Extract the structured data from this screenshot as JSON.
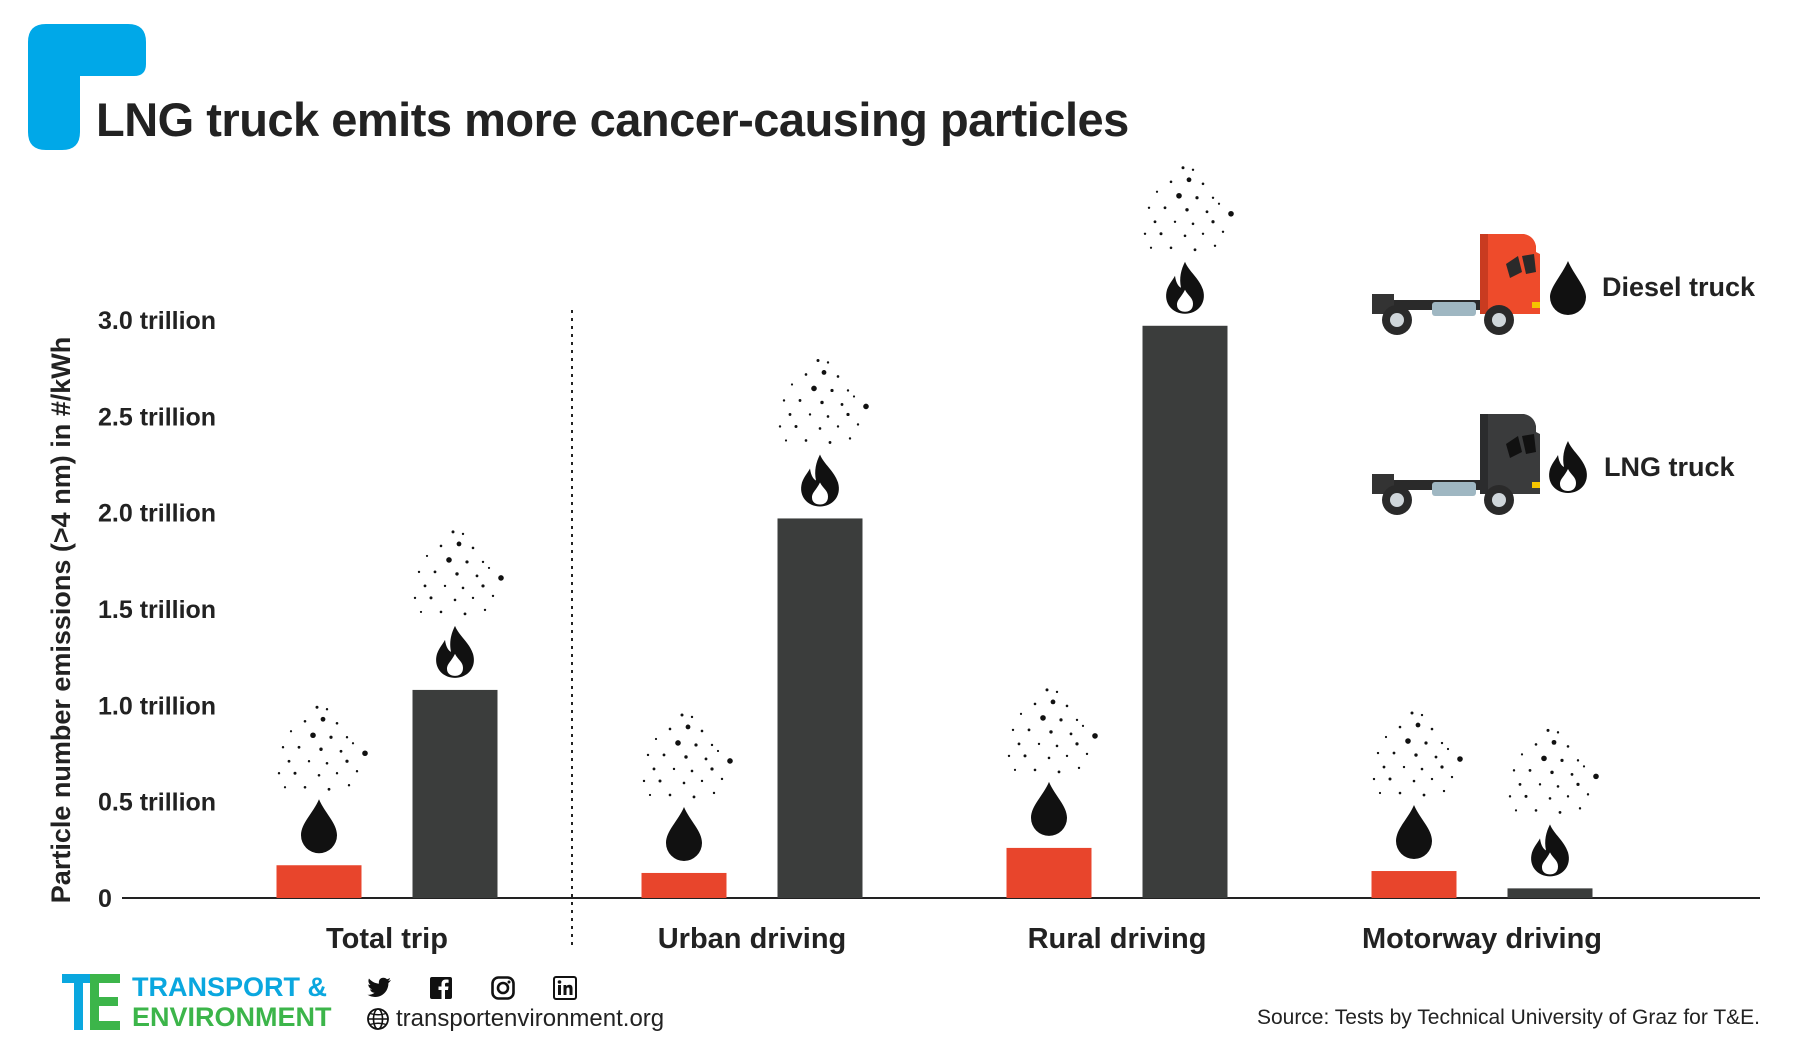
{
  "title": "LNG truck emits more cancer-causing particles",
  "colors": {
    "accent": "#00a8e8",
    "diesel": "#e8452c",
    "lng": "#3b3d3c",
    "axis": "#222222"
  },
  "legend": [
    {
      "label": "Diesel truck",
      "icon": "droplet-icon",
      "truck_color": "#ee4b2b"
    },
    {
      "label": "LNG truck",
      "icon": "flame-icon",
      "truck_color": "#3a3b3c"
    }
  ],
  "chart_data": {
    "type": "bar",
    "ylabel": "Particle number emissions (>4 nm) in #/kWh",
    "yticks": [
      {
        "value": 0,
        "label": "0"
      },
      {
        "value": 0.5,
        "label": "0.5 trillion"
      },
      {
        "value": 1.0,
        "label": "1.0 trillion"
      },
      {
        "value": 1.5,
        "label": "1.5 trillion"
      },
      {
        "value": 2.0,
        "label": "2.0 trillion"
      },
      {
        "value": 2.5,
        "label": "2.5 trillion"
      },
      {
        "value": 3.0,
        "label": "3.0 trillion"
      }
    ],
    "ylim": [
      0,
      3.1
    ],
    "categories": [
      "Total trip",
      "Urban driving",
      "Rural driving",
      "Motorway driving"
    ],
    "series": [
      {
        "name": "Diesel truck",
        "values": [
          0.17,
          0.13,
          0.26,
          0.14
        ]
      },
      {
        "name": "LNG truck",
        "values": [
          1.08,
          1.97,
          2.97,
          0.05
        ]
      }
    ]
  },
  "footer": {
    "org_line1": "TRANSPORT &",
    "org_line2": "ENVIRONMENT",
    "social_icons": [
      "twitter-icon",
      "facebook-icon",
      "instagram-icon",
      "linkedin-icon"
    ],
    "website": "transportenvironment.org",
    "source": "Source: Tests by Technical University of Graz for T&E."
  }
}
